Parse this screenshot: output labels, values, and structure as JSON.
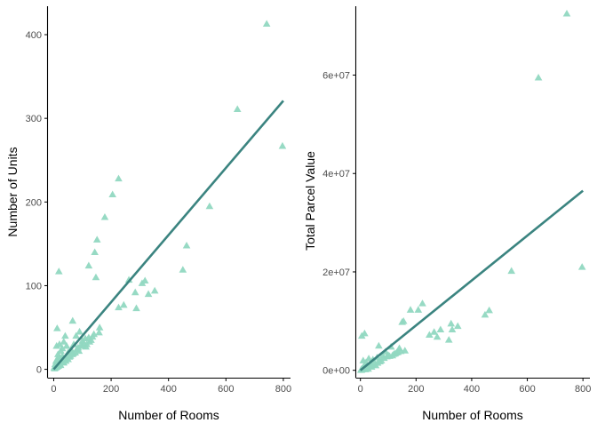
{
  "colors": {
    "points": "#91d8c1",
    "line": "#3b8480",
    "axis": "#000000",
    "tick_label": "#4d4d4d"
  },
  "chart_data": [
    {
      "type": "scatter",
      "xlabel": "Number of Rooms",
      "ylabel": "Number of Units",
      "xlim": [
        -20,
        825
      ],
      "ylim": [
        -10,
        434
      ],
      "xticks": [
        0,
        200,
        400,
        600,
        800
      ],
      "xtick_labels": [
        "0",
        "200",
        "400",
        "600",
        "800"
      ],
      "yticks": [
        0,
        100,
        200,
        300,
        400
      ],
      "ytick_labels": [
        "0",
        "100",
        "200",
        "300",
        "400"
      ],
      "marker": "triangle",
      "grid": false,
      "points": [
        [
          742,
          413
        ],
        [
          640,
          311
        ],
        [
          797,
          267
        ],
        [
          543,
          195
        ],
        [
          463,
          148
        ],
        [
          450,
          119
        ],
        [
          226,
          228
        ],
        [
          205,
          209
        ],
        [
          178,
          182
        ],
        [
          151,
          155
        ],
        [
          143,
          140
        ],
        [
          122,
          124
        ],
        [
          147,
          110
        ],
        [
          18,
          117
        ],
        [
          262,
          107
        ],
        [
          308,
          103
        ],
        [
          318,
          106
        ],
        [
          284,
          92
        ],
        [
          352,
          94
        ],
        [
          330,
          90
        ],
        [
          244,
          77
        ],
        [
          226,
          74
        ],
        [
          288,
          73
        ],
        [
          160,
          50
        ],
        [
          158,
          44
        ],
        [
          66,
          58
        ],
        [
          12,
          49
        ],
        [
          40,
          40
        ],
        [
          35,
          33
        ],
        [
          78,
          40
        ],
        [
          122,
          38
        ],
        [
          90,
          45
        ],
        [
          110,
          37
        ],
        [
          100,
          34
        ],
        [
          10,
          28
        ],
        [
          20,
          30
        ],
        [
          30,
          25
        ],
        [
          45,
          28
        ],
        [
          60,
          24
        ],
        [
          70,
          30
        ],
        [
          50,
          20
        ],
        [
          85,
          26
        ],
        [
          95,
          29
        ],
        [
          115,
          30
        ],
        [
          130,
          35
        ],
        [
          140,
          42
        ],
        [
          25,
          22
        ],
        [
          15,
          18
        ],
        [
          12,
          12
        ],
        [
          8,
          10
        ],
        [
          5,
          6
        ],
        [
          20,
          14
        ],
        [
          30,
          16
        ],
        [
          40,
          12
        ],
        [
          55,
          15
        ],
        [
          65,
          18
        ],
        [
          75,
          20
        ],
        [
          35,
          8
        ],
        [
          22,
          6
        ],
        [
          2,
          2
        ],
        [
          4,
          3
        ],
        [
          6,
          4
        ],
        [
          10,
          5
        ],
        [
          14,
          7
        ],
        [
          18,
          9
        ],
        [
          28,
          11
        ],
        [
          45,
          14
        ],
        [
          60,
          22
        ],
        [
          80,
          24
        ],
        [
          100,
          28
        ],
        [
          105,
          31
        ],
        [
          125,
          33
        ],
        [
          135,
          39
        ],
        [
          3,
          1
        ],
        [
          7,
          2
        ],
        [
          12,
          3
        ],
        [
          16,
          4
        ],
        [
          24,
          5
        ],
        [
          32,
          8
        ],
        [
          42,
          10
        ],
        [
          50,
          12
        ],
        [
          58,
          16
        ],
        [
          68,
          19
        ],
        [
          88,
          22
        ],
        [
          112,
          27
        ]
      ],
      "trend_line": {
        "x": [
          0,
          800
        ],
        "y": [
          0,
          321
        ]
      }
    },
    {
      "type": "scatter",
      "xlabel": "Number of Rooms",
      "ylabel": "Total Parcel Value",
      "xlim": [
        -15,
        825
      ],
      "ylim": [
        -1500000,
        74000000
      ],
      "xticks": [
        0,
        200,
        400,
        600,
        800
      ],
      "xtick_labels": [
        "0",
        "200",
        "400",
        "600",
        "800"
      ],
      "yticks": [
        0,
        20000000,
        40000000,
        60000000
      ],
      "ytick_labels": [
        "0e+00",
        "2e+07",
        "4e+07",
        "6e+07"
      ],
      "marker": "triangle",
      "grid": false,
      "points": [
        [
          742,
          72500000
        ],
        [
          640,
          59500000
        ],
        [
          797,
          21000000
        ],
        [
          543,
          20200000
        ],
        [
          463,
          12200000
        ],
        [
          448,
          11300000
        ],
        [
          223,
          13600000
        ],
        [
          180,
          12300000
        ],
        [
          208,
          12300000
        ],
        [
          155,
          10000000
        ],
        [
          150,
          9800000
        ],
        [
          350,
          9000000
        ],
        [
          326,
          9500000
        ],
        [
          330,
          8300000
        ],
        [
          288,
          8300000
        ],
        [
          265,
          7800000
        ],
        [
          318,
          6200000
        ],
        [
          276,
          6800000
        ],
        [
          248,
          7200000
        ],
        [
          15,
          7500000
        ],
        [
          5,
          7000000
        ],
        [
          66,
          5000000
        ],
        [
          140,
          4500000
        ],
        [
          110,
          4800000
        ],
        [
          90,
          3800000
        ],
        [
          120,
          3300000
        ],
        [
          160,
          4000000
        ],
        [
          130,
          3600000
        ],
        [
          100,
          3100000
        ],
        [
          80,
          3000000
        ],
        [
          60,
          2600000
        ],
        [
          45,
          2200000
        ],
        [
          30,
          2400000
        ],
        [
          10,
          2000000
        ],
        [
          20,
          1600000
        ],
        [
          35,
          1400000
        ],
        [
          50,
          1300000
        ],
        [
          70,
          1800000
        ],
        [
          55,
          1000000
        ],
        [
          40,
          700000
        ],
        [
          25,
          800000
        ],
        [
          12,
          500000
        ],
        [
          8,
          400000
        ],
        [
          5,
          300000
        ],
        [
          18,
          200000
        ],
        [
          28,
          300000
        ],
        [
          2,
          100000
        ],
        [
          4,
          150000
        ],
        [
          6,
          200000
        ],
        [
          14,
          350000
        ],
        [
          22,
          600000
        ],
        [
          32,
          900000
        ],
        [
          42,
          1100000
        ],
        [
          62,
          1500000
        ],
        [
          75,
          2000000
        ],
        [
          85,
          2500000
        ],
        [
          95,
          2800000
        ],
        [
          105,
          2900000
        ],
        [
          115,
          3000000
        ],
        [
          125,
          3400000
        ],
        [
          135,
          3700000
        ],
        [
          145,
          3900000
        ],
        [
          3,
          50000
        ],
        [
          9,
          250000
        ]
      ],
      "trend_line": {
        "x": [
          0,
          800
        ],
        "y": [
          0,
          36500000
        ]
      }
    }
  ]
}
